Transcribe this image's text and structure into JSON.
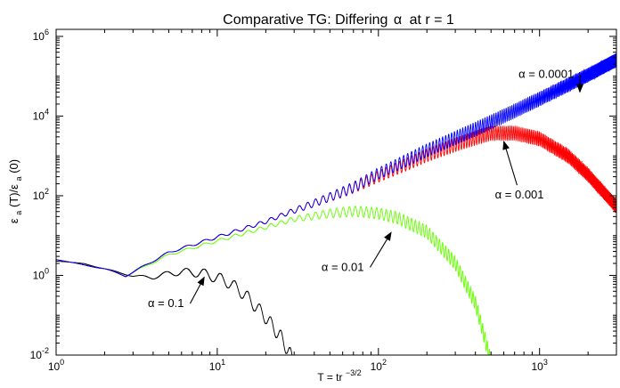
{
  "chart_data": {
    "type": "line",
    "title_prefix": "Comparative TG: Differing",
    "title_symbol": "α",
    "title_suffix": "at r = 1",
    "xlabel": "T = tr",
    "xlabel_exp": "−3/2",
    "ylabel_parts": [
      "ε",
      "a",
      "(T)/ε",
      "a",
      "(0)"
    ],
    "x_scale": "log",
    "y_scale": "log",
    "xlim": [
      1,
      3000
    ],
    "ylim": [
      0.01,
      1500000
    ],
    "x_ticks": [
      {
        "value": 1,
        "base": "10",
        "exp": "0"
      },
      {
        "value": 10,
        "base": "10",
        "exp": "1"
      },
      {
        "value": 100,
        "base": "10",
        "exp": "2"
      },
      {
        "value": 1000,
        "base": "10",
        "exp": "3"
      }
    ],
    "y_ticks": [
      {
        "value": 0.01,
        "base": "10",
        "exp": "-2"
      },
      {
        "value": 1,
        "base": "10",
        "exp": "0"
      },
      {
        "value": 100,
        "base": "10",
        "exp": "2"
      },
      {
        "value": 10000,
        "base": "10",
        "exp": "4"
      },
      {
        "value": 1000000,
        "base": "10",
        "exp": "6"
      }
    ],
    "series": [
      {
        "name": "α = 0.0001",
        "label": "α = 0.0001",
        "color": "#0000ff",
        "envelope": [
          [
            1,
            2.5
          ],
          [
            2,
            1.5
          ],
          [
            2.7,
            1.0
          ],
          [
            5,
            4.0
          ],
          [
            10,
            10
          ],
          [
            20,
            25
          ],
          [
            40,
            80
          ],
          [
            70,
            220
          ],
          [
            100,
            500
          ],
          [
            200,
            2000
          ],
          [
            400,
            7000
          ],
          [
            700,
            20000
          ],
          [
            1000,
            40000
          ],
          [
            2000,
            160000
          ],
          [
            3000,
            380000
          ]
        ],
        "band_end": [
          [
            1,
            0
          ],
          [
            25,
            0.3
          ],
          [
            60,
            0.7
          ],
          [
            150,
            0.9
          ],
          [
            400,
            1.0
          ],
          [
            3000,
            1.0
          ]
        ],
        "label_at": [
          1100,
          90000
        ],
        "arrow_to": [
          1780,
          40000
        ]
      },
      {
        "name": "α = 0.001",
        "label": "α = 0.001",
        "color": "#ff0000",
        "envelope": [
          [
            1,
            2.5
          ],
          [
            2,
            1.5
          ],
          [
            2.7,
            1.0
          ],
          [
            5,
            4.0
          ],
          [
            10,
            10
          ],
          [
            20,
            25
          ],
          [
            40,
            80
          ],
          [
            70,
            210
          ],
          [
            100,
            420
          ],
          [
            200,
            1500
          ],
          [
            300,
            2800
          ],
          [
            400,
            4200
          ],
          [
            500,
            5500
          ],
          [
            700,
            5600
          ],
          [
            1000,
            4000
          ],
          [
            1500,
            1500
          ],
          [
            2000,
            500
          ],
          [
            3000,
            80
          ]
        ],
        "band_end": [
          [
            1,
            0
          ],
          [
            25,
            0.3
          ],
          [
            60,
            0.7
          ],
          [
            150,
            0.9
          ],
          [
            400,
            1.0
          ],
          [
            3000,
            1.0
          ]
        ],
        "label_at": [
          750,
          85
        ],
        "arrow_to": [
          600,
          2300
        ]
      },
      {
        "name": "α = 0.01",
        "label": "α = 0.01",
        "color": "#66ff00",
        "envelope": [
          [
            1,
            2.5
          ],
          [
            2,
            1.5
          ],
          [
            2.7,
            1.0
          ],
          [
            5,
            3.5
          ],
          [
            10,
            8
          ],
          [
            20,
            18
          ],
          [
            30,
            30
          ],
          [
            50,
            46
          ],
          [
            70,
            55
          ],
          [
            100,
            50
          ],
          [
            130,
            40
          ],
          [
            200,
            18
          ],
          [
            300,
            3
          ],
          [
            400,
            0.3
          ],
          [
            500,
            0.01
          ]
        ],
        "band_end": [
          [
            1,
            0
          ],
          [
            25,
            0.3
          ],
          [
            60,
            0.7
          ],
          [
            150,
            0.9
          ],
          [
            400,
            1.0
          ],
          [
            3000,
            1.0
          ]
        ],
        "label_at": [
          60,
          1.3
        ],
        "arrow_to": [
          120,
          12
        ]
      },
      {
        "name": "α = 0.1",
        "label": "α = 0.1",
        "color": "#000000",
        "envelope": [
          [
            1,
            2.3
          ],
          [
            1.5,
            2.0
          ],
          [
            2,
            1.5
          ],
          [
            3,
            1.0
          ],
          [
            4,
            1.0
          ],
          [
            5,
            1.3
          ],
          [
            6,
            1.5
          ],
          [
            8,
            1.5
          ],
          [
            10,
            1.2
          ],
          [
            12,
            0.9
          ],
          [
            15,
            0.45
          ],
          [
            20,
            0.13
          ],
          [
            25,
            0.04
          ],
          [
            30,
            0.01
          ]
        ],
        "band_end": [
          [
            1,
            0
          ],
          [
            3,
            0.1
          ],
          [
            6,
            0.5
          ],
          [
            10,
            0.8
          ],
          [
            20,
            0.95
          ],
          [
            30,
            1.0
          ]
        ],
        "label_at": [
          4.8,
          0.16
        ],
        "arrow_to": [
          8.3,
          0.9
        ]
      }
    ]
  }
}
